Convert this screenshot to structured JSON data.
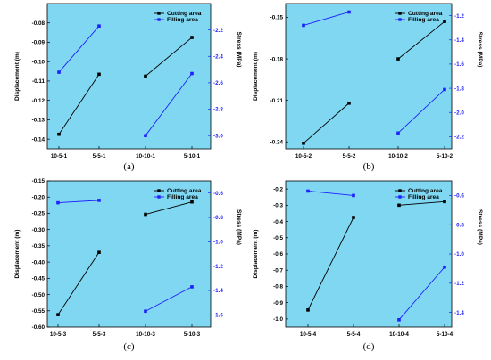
{
  "chart_data": [
    {
      "type": "line",
      "panel_label": "(a)",
      "categories": [
        "10-5-1",
        "5-5-1",
        "10-10-1",
        "5-10-1"
      ],
      "ylabel": "Displacement (m)",
      "y2label": "Stress (MPa)",
      "ylim": [
        -0.145,
        -0.07
      ],
      "yticks": [
        -0.14,
        -0.13,
        -0.12,
        -0.11,
        -0.1,
        -0.09,
        -0.08
      ],
      "y2lim": [
        -3.1,
        -2.0
      ],
      "y2ticks": [
        -3.0,
        -2.8,
        -2.6,
        -2.4,
        -2.2
      ],
      "legend_position": "top-right",
      "series": [
        {
          "name": "Cutting area",
          "axis": "left",
          "color": "#000000",
          "marker": "square",
          "segments": [
            [
              0,
              1
            ],
            [
              2,
              3
            ]
          ],
          "values": [
            -0.1375,
            -0.1065,
            -0.1075,
            -0.0875
          ]
        },
        {
          "name": "Filling area",
          "axis": "right",
          "color": "#1f1fff",
          "marker": "square",
          "segments": [
            [
              0,
              1
            ],
            [
              2,
              3
            ]
          ],
          "values": [
            -2.52,
            -2.17,
            -3.0,
            -2.53
          ]
        }
      ]
    },
    {
      "type": "line",
      "panel_label": "(b)",
      "categories": [
        "10-5-2",
        "5-5-2",
        "10-10-2",
        "5-10-2"
      ],
      "ylabel": "Displacement (m)",
      "y2label": "Stress (MPa)",
      "ylim": [
        -0.245,
        -0.14
      ],
      "yticks": [
        -0.24,
        -0.21,
        -0.18,
        -0.15
      ],
      "y2lim": [
        -2.3,
        -1.1
      ],
      "y2ticks": [
        -2.2,
        -2.0,
        -1.8,
        -1.6,
        -1.4,
        -1.2
      ],
      "legend_position": "top-right",
      "series": [
        {
          "name": "Cutting area",
          "axis": "left",
          "color": "#000000",
          "marker": "square",
          "segments": [
            [
              0,
              1
            ],
            [
              2,
              3
            ]
          ],
          "values": [
            -0.241,
            -0.212,
            -0.18,
            -0.153
          ]
        },
        {
          "name": "Filling area",
          "axis": "right",
          "color": "#1f1fff",
          "marker": "square",
          "segments": [
            [
              0,
              1
            ],
            [
              2,
              3
            ]
          ],
          "values": [
            -1.28,
            -1.17,
            -2.17,
            -1.81
          ]
        }
      ]
    },
    {
      "type": "line",
      "panel_label": "(c)",
      "categories": [
        "10-5-3",
        "5-5-3",
        "10-10-3",
        "5-10-3"
      ],
      "ylabel": "Displacement (m)",
      "y2label": "Stress (MPa)",
      "ylim": [
        -0.6,
        -0.15
      ],
      "yticks": [
        -0.6,
        -0.55,
        -0.5,
        -0.45,
        -0.4,
        -0.35,
        -0.3,
        -0.25,
        -0.2,
        -0.15
      ],
      "y2lim": [
        -1.7,
        -0.5
      ],
      "y2ticks": [
        -1.6,
        -1.4,
        -1.2,
        -1.0,
        -0.8,
        -0.6
      ],
      "legend_position": "top-right",
      "series": [
        {
          "name": "Cutting area",
          "axis": "left",
          "color": "#000000",
          "marker": "square",
          "segments": [
            [
              0,
              1
            ],
            [
              2,
              3
            ]
          ],
          "values": [
            -0.562,
            -0.37,
            -0.253,
            -0.215
          ]
        },
        {
          "name": "Filling area",
          "axis": "right",
          "color": "#1f1fff",
          "marker": "square",
          "segments": [
            [
              0,
              1
            ],
            [
              2,
              3
            ]
          ],
          "values": [
            -0.68,
            -0.66,
            -1.57,
            -1.37
          ]
        }
      ]
    },
    {
      "type": "line",
      "panel_label": "(d)",
      "categories": [
        "10-5-4",
        "5-5-4",
        "10-10-4",
        "5-10-4"
      ],
      "ylabel": "Displacement (m)",
      "y2label": "Stress (MPa)",
      "ylim": [
        -1.05,
        -0.15
      ],
      "yticks": [
        -1.0,
        -0.9,
        -0.8,
        -0.7,
        -0.6,
        -0.5,
        -0.4,
        -0.3,
        -0.2
      ],
      "y2lim": [
        -1.5,
        -0.5
      ],
      "y2ticks": [
        -1.4,
        -1.2,
        -1.0,
        -0.8,
        -0.6
      ],
      "legend_position": "top-right",
      "series": [
        {
          "name": "Cutting area",
          "axis": "left",
          "color": "#000000",
          "marker": "square",
          "segments": [
            [
              0,
              1
            ],
            [
              2,
              3
            ]
          ],
          "values": [
            -0.945,
            -0.375,
            -0.3,
            -0.278
          ]
        },
        {
          "name": "Filling area",
          "axis": "right",
          "color": "#1f1fff",
          "marker": "square",
          "segments": [
            [
              0,
              1
            ],
            [
              2,
              3
            ]
          ],
          "values": [
            -0.57,
            -0.6,
            -1.45,
            -1.09
          ]
        }
      ]
    }
  ]
}
